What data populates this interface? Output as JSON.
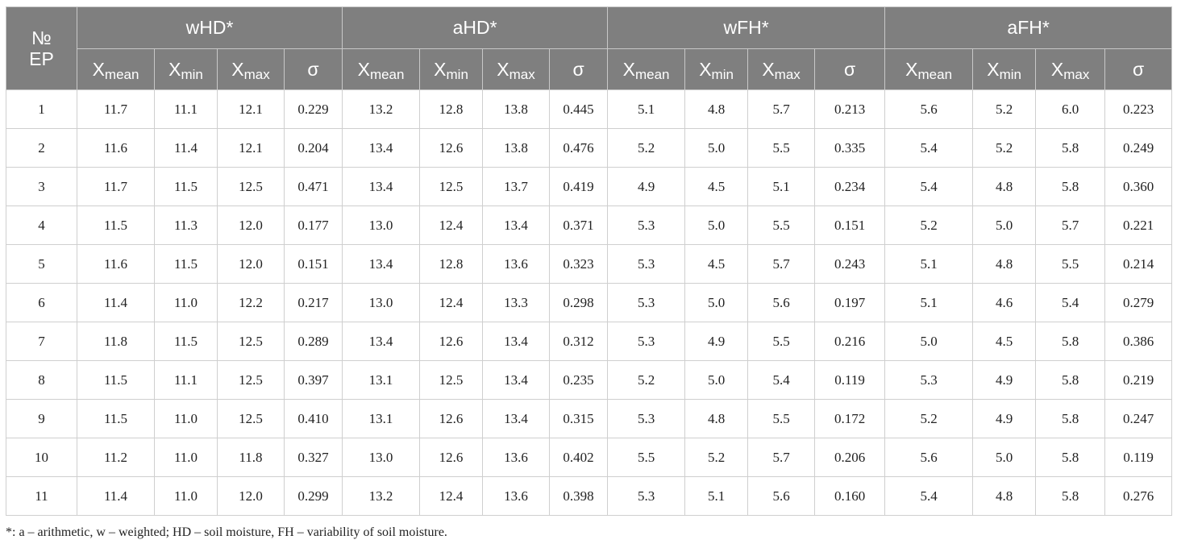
{
  "header": {
    "ep_label_line1": "№",
    "ep_label_line2": "EP",
    "groups": [
      "wHD*",
      "aHD*",
      "wFH*",
      "aFH*"
    ],
    "sub": [
      {
        "base": "X",
        "subscript": "mean"
      },
      {
        "base": "X",
        "subscript": "min"
      },
      {
        "base": "X",
        "subscript": "max"
      },
      {
        "base": "σ",
        "subscript": ""
      }
    ]
  },
  "rows": [
    [
      "1",
      "11.7",
      "11.1",
      "12.1",
      "0.229",
      "13.2",
      "12.8",
      "13.8",
      "0.445",
      "5.1",
      "4.8",
      "5.7",
      "0.213",
      "5.6",
      "5.2",
      "6.0",
      "0.223"
    ],
    [
      "2",
      "11.6",
      "11.4",
      "12.1",
      "0.204",
      "13.4",
      "12.6",
      "13.8",
      "0.476",
      "5.2",
      "5.0",
      "5.5",
      "0.335",
      "5.4",
      "5.2",
      "5.8",
      "0.249"
    ],
    [
      "3",
      "11.7",
      "11.5",
      "12.5",
      "0.471",
      "13.4",
      "12.5",
      "13.7",
      "0.419",
      "4.9",
      "4.5",
      "5.1",
      "0.234",
      "5.4",
      "4.8",
      "5.8",
      "0.360"
    ],
    [
      "4",
      "11.5",
      "11.3",
      "12.0",
      "0.177",
      "13.0",
      "12.4",
      "13.4",
      "0.371",
      "5.3",
      "5.0",
      "5.5",
      "0.151",
      "5.2",
      "5.0",
      "5.7",
      "0.221"
    ],
    [
      "5",
      "11.6",
      "11.5",
      "12.0",
      "0.151",
      "13.4",
      "12.8",
      "13.6",
      "0.323",
      "5.3",
      "4.5",
      "5.7",
      "0.243",
      "5.1",
      "4.8",
      "5.5",
      "0.214"
    ],
    [
      "6",
      "11.4",
      "11.0",
      "12.2",
      "0.217",
      "13.0",
      "12.4",
      "13.3",
      "0.298",
      "5.3",
      "5.0",
      "5.6",
      "0.197",
      "5.1",
      "4.6",
      "5.4",
      "0.279"
    ],
    [
      "7",
      "11.8",
      "11.5",
      "12.5",
      "0.289",
      "13.4",
      "12.6",
      "13.4",
      "0.312",
      "5.3",
      "4.9",
      "5.5",
      "0.216",
      "5.0",
      "4.5",
      "5.8",
      "0.386"
    ],
    [
      "8",
      "11.5",
      "11.1",
      "12.5",
      "0.397",
      "13.1",
      "12.5",
      "13.4",
      "0.235",
      "5.2",
      "5.0",
      "5.4",
      "0.119",
      "5.3",
      "4.9",
      "5.8",
      "0.219"
    ],
    [
      "9",
      "11.5",
      "11.0",
      "12.5",
      "0.410",
      "13.1",
      "12.6",
      "13.4",
      "0.315",
      "5.3",
      "4.8",
      "5.5",
      "0.172",
      "5.2",
      "4.9",
      "5.8",
      "0.247"
    ],
    [
      "10",
      "11.2",
      "11.0",
      "11.8",
      "0.327",
      "13.0",
      "12.6",
      "13.6",
      "0.402",
      "5.5",
      "5.2",
      "5.7",
      "0.206",
      "5.6",
      "5.0",
      "5.8",
      "0.119"
    ],
    [
      "11",
      "11.4",
      "11.0",
      "12.0",
      "0.299",
      "13.2",
      "12.4",
      "13.6",
      "0.398",
      "5.3",
      "5.1",
      "5.6",
      "0.160",
      "5.4",
      "4.8",
      "5.8",
      "0.276"
    ]
  ],
  "footnote": "*: a – arithmetic, w – weighted; HD – soil moisture, FH – variability of soil moisture."
}
